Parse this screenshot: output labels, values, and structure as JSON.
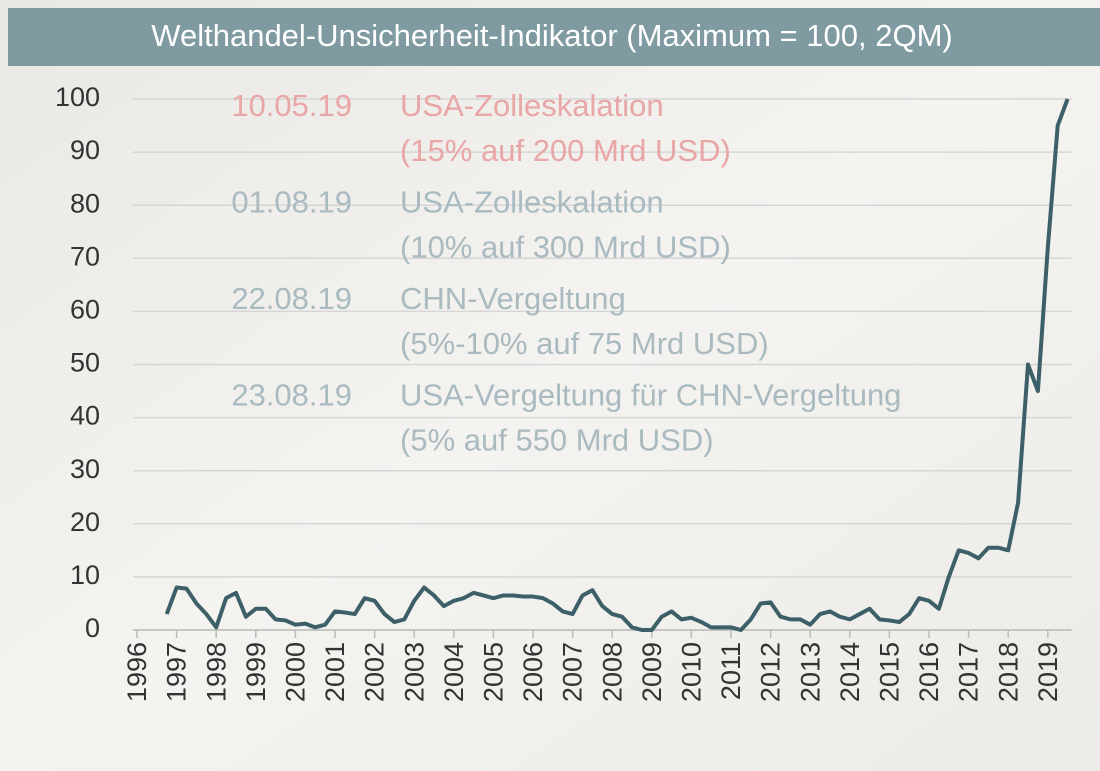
{
  "chart_data": {
    "type": "line",
    "title": "Welthandel-Unsicherheit-Indikator (Maximum = 100, 2QM)",
    "x": [
      1996.75,
      1997,
      1997.25,
      1997.5,
      1997.75,
      1998,
      1998.25,
      1998.5,
      1998.75,
      1999,
      1999.25,
      1999.5,
      1999.75,
      2000,
      2000.25,
      2000.5,
      2000.75,
      2001,
      2001.25,
      2001.5,
      2001.75,
      2002,
      2002.25,
      2002.5,
      2002.75,
      2003,
      2003.25,
      2003.5,
      2003.75,
      2004,
      2004.25,
      2004.5,
      2004.75,
      2005,
      2005.25,
      2005.5,
      2005.75,
      2006,
      2006.25,
      2006.5,
      2006.75,
      2007,
      2007.25,
      2007.5,
      2007.75,
      2008,
      2008.25,
      2008.5,
      2008.75,
      2009,
      2009.25,
      2009.5,
      2009.75,
      2010,
      2010.25,
      2010.5,
      2010.75,
      2011,
      2011.25,
      2011.5,
      2011.75,
      2012,
      2012.25,
      2012.5,
      2012.75,
      2013,
      2013.25,
      2013.5,
      2013.75,
      2014,
      2014.25,
      2014.5,
      2014.75,
      2015,
      2015.25,
      2015.5,
      2015.75,
      2016,
      2016.25,
      2016.5,
      2016.75,
      2017,
      2017.25,
      2017.5,
      2017.75,
      2018,
      2018.25,
      2018.5,
      2018.75,
      2019,
      2019.25,
      2019.5
    ],
    "series": [
      {
        "color": "#3d5f68",
        "values": [
          3,
          8,
          7.8,
          5,
          3,
          0.5,
          6,
          7,
          2.5,
          4,
          4,
          2,
          1.8,
          1,
          1.2,
          0.5,
          1,
          3.5,
          3.3,
          3,
          6,
          5.5,
          3,
          1.5,
          2,
          5.5,
          8,
          6.5,
          4.5,
          5.5,
          6,
          7,
          6.5,
          6,
          6.5,
          6.5,
          6.3,
          6.3,
          6,
          5,
          3.5,
          3,
          6.5,
          7.5,
          4.5,
          3,
          2.5,
          0.5,
          0,
          0,
          2.5,
          3.5,
          2,
          2.3,
          1.5,
          0.5,
          0.5,
          0.5,
          0,
          2,
          5,
          5.2,
          2.5,
          2,
          2,
          1,
          3,
          3.5,
          2.5,
          2,
          3,
          4,
          2,
          1.8,
          1.5,
          3,
          6,
          5.5,
          4,
          10,
          15,
          14.5,
          13.5,
          15.5,
          15.5,
          15,
          24,
          50,
          45,
          72,
          95,
          100
        ]
      }
    ],
    "xlim": [
      1996,
      2019.6
    ],
    "xticks": [
      1996,
      1997,
      1998,
      1999,
      2000,
      2001,
      2002,
      2003,
      2004,
      2005,
      2006,
      2007,
      2008,
      2009,
      2010,
      2011,
      2012,
      2013,
      2014,
      2015,
      2016,
      2017,
      2018,
      2019
    ],
    "ylim": [
      0,
      100
    ],
    "yticks": [
      0,
      10,
      20,
      30,
      40,
      50,
      60,
      70,
      80,
      90,
      100
    ],
    "grid": true,
    "annotations": [
      {
        "date": "10.05.19",
        "lines": [
          "USA-Zolleskalation",
          "(15% auf 200 Mrd USD)"
        ],
        "color": "#e9a6a6"
      },
      {
        "date": "01.08.19",
        "lines": [
          "USA-Zolleskalation",
          "(10% auf 300 Mrd USD)"
        ],
        "color": "#a9bac1"
      },
      {
        "date": "22.08.19",
        "lines": [
          "CHN-Vergeltung",
          "(5%-10% auf 75 Mrd USD)"
        ],
        "color": "#a9bac1"
      },
      {
        "date": "23.08.19",
        "lines": [
          "USA-Vergeltung für CHN-Vergeltung",
          "(5% auf 550 Mrd USD)"
        ],
        "color": "#a9bac1"
      }
    ]
  }
}
